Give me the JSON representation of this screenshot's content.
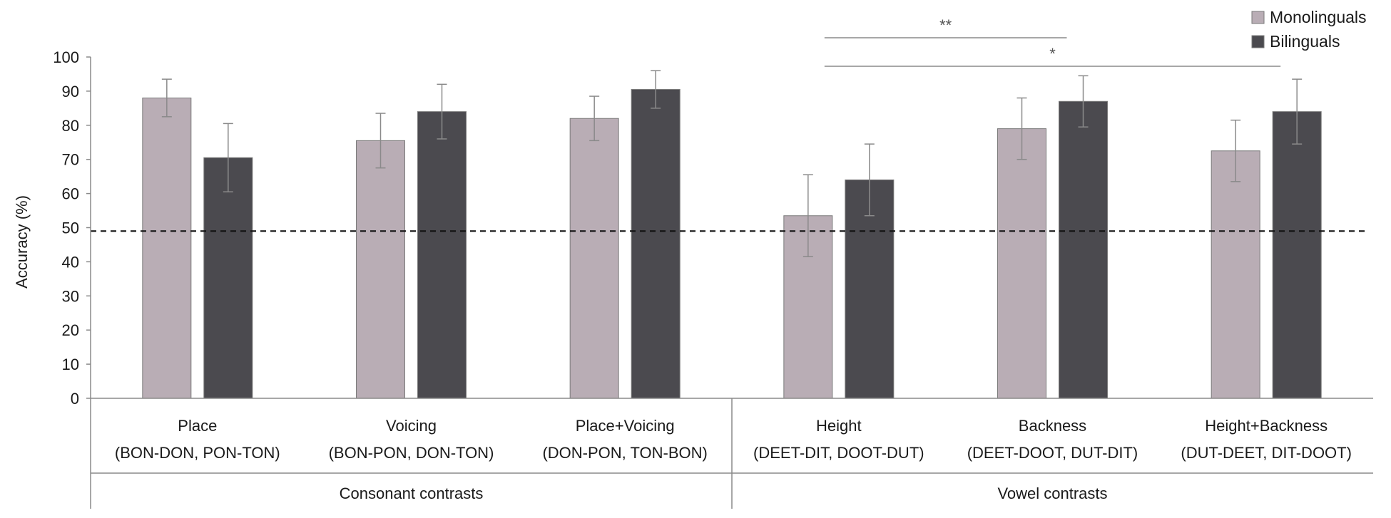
{
  "chart_data": {
    "type": "bar",
    "title": "",
    "ylabel": "Accuracy (%)",
    "xlabel": "",
    "ylim": [
      0,
      100
    ],
    "yticks": [
      0,
      10,
      20,
      30,
      40,
      50,
      60,
      70,
      80,
      90,
      100
    ],
    "chance_level": 49,
    "categories": [
      {
        "name": "Place",
        "pairs": "(BON-DON, PON-TON)"
      },
      {
        "name": "Voicing",
        "pairs": "(BON-PON, DON-TON)"
      },
      {
        "name": "Place+Voicing",
        "pairs": "(DON-PON, TON-BON)"
      },
      {
        "name": "Height",
        "pairs": "(DEET-DIT, DOOT-DUT)"
      },
      {
        "name": "Backness",
        "pairs": "(DEET-DOOT, DUT-DIT)"
      },
      {
        "name": "Height+Backness",
        "pairs": "(DUT-DEET, DIT-DOOT)"
      }
    ],
    "groups": [
      {
        "label": "Consonant contrasts",
        "categories": [
          0,
          1,
          2
        ]
      },
      {
        "label": "Vowel contrasts",
        "categories": [
          3,
          4,
          5
        ]
      }
    ],
    "series": [
      {
        "name": "Monolinguals",
        "color": "#b9adb5",
        "values": [
          88,
          75.5,
          82,
          53.5,
          79,
          72.5
        ],
        "errors": [
          5.5,
          8,
          6.5,
          12,
          9,
          9
        ]
      },
      {
        "name": "Bilinguals",
        "color": "#4b4a4f",
        "values": [
          70.5,
          84,
          90.5,
          64,
          87,
          84
        ],
        "errors": [
          10,
          8,
          5.5,
          10.5,
          7.5,
          9.5
        ]
      }
    ],
    "significance": [
      {
        "label": "**",
        "from_category": 3,
        "to_category": 4
      },
      {
        "label": "*",
        "from_category": 3,
        "to_category": 5
      }
    ],
    "legend_position": "top-right"
  }
}
